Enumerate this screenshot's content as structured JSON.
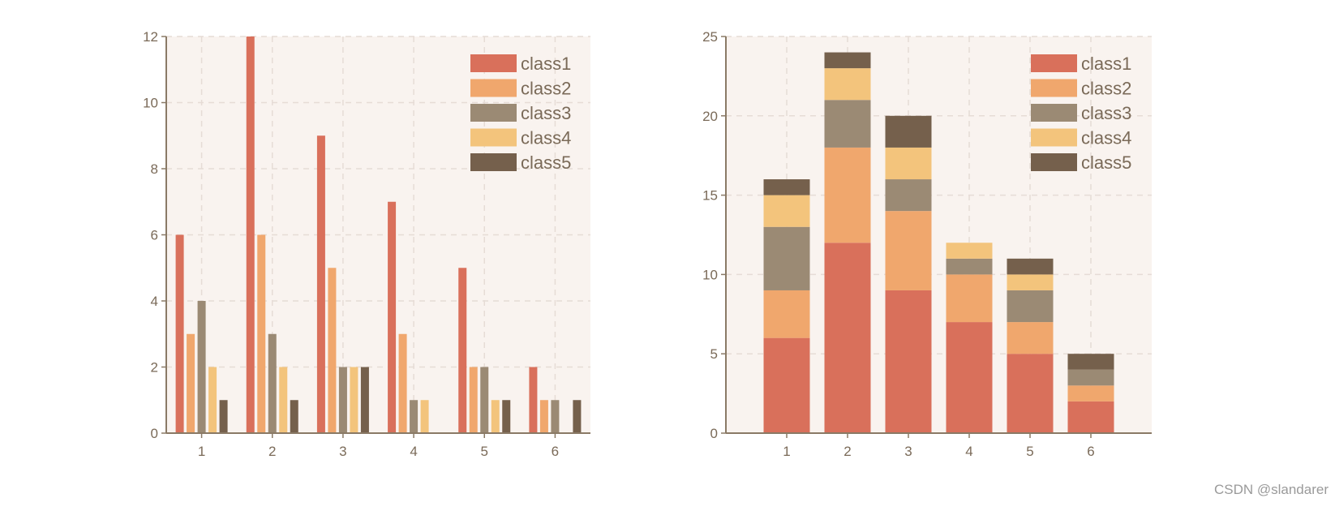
{
  "watermark": "CSDN @slandarer",
  "colors": {
    "plot_bg": "#f9f3ef",
    "grid": "#e6dcd6",
    "axis": "#8a7a66",
    "text": "#7a6a58"
  },
  "chart_data": [
    {
      "type": "bar",
      "mode": "grouped",
      "categories": [
        "1",
        "2",
        "3",
        "4",
        "5",
        "6"
      ],
      "series": [
        {
          "name": "class1",
          "color": "#d9705b",
          "values": [
            6,
            12,
            9,
            7,
            5,
            2
          ]
        },
        {
          "name": "class2",
          "color": "#f0a76d",
          "values": [
            3,
            6,
            5,
            3,
            2,
            1
          ]
        },
        {
          "name": "class3",
          "color": "#9b8a74",
          "values": [
            4,
            3,
            2,
            1,
            2,
            1
          ]
        },
        {
          "name": "class4",
          "color": "#f3c47c",
          "values": [
            2,
            2,
            2,
            1,
            1,
            0
          ]
        },
        {
          "name": "class5",
          "color": "#75604c",
          "values": [
            1,
            1,
            2,
            0,
            1,
            1
          ]
        }
      ],
      "ylim": [
        0,
        12
      ],
      "yticks": [
        0,
        2,
        4,
        6,
        8,
        10,
        12
      ],
      "grid": true,
      "legend_position": "top-right"
    },
    {
      "type": "bar",
      "mode": "stacked",
      "categories": [
        "1",
        "2",
        "3",
        "4",
        "5",
        "6"
      ],
      "series": [
        {
          "name": "class1",
          "color": "#d9705b",
          "values": [
            6,
            12,
            9,
            7,
            5,
            2
          ]
        },
        {
          "name": "class2",
          "color": "#f0a76d",
          "values": [
            3,
            6,
            5,
            3,
            2,
            1
          ]
        },
        {
          "name": "class3",
          "color": "#9b8a74",
          "values": [
            4,
            3,
            2,
            1,
            2,
            1
          ]
        },
        {
          "name": "class4",
          "color": "#f3c47c",
          "values": [
            2,
            2,
            2,
            1,
            1,
            0
          ]
        },
        {
          "name": "class5",
          "color": "#75604c",
          "values": [
            1,
            1,
            2,
            0,
            1,
            1
          ]
        }
      ],
      "xlim": [
        0,
        7
      ],
      "ylim": [
        0,
        25
      ],
      "yticks": [
        0,
        5,
        10,
        15,
        20,
        25
      ],
      "grid": true,
      "legend_position": "top-right"
    }
  ]
}
